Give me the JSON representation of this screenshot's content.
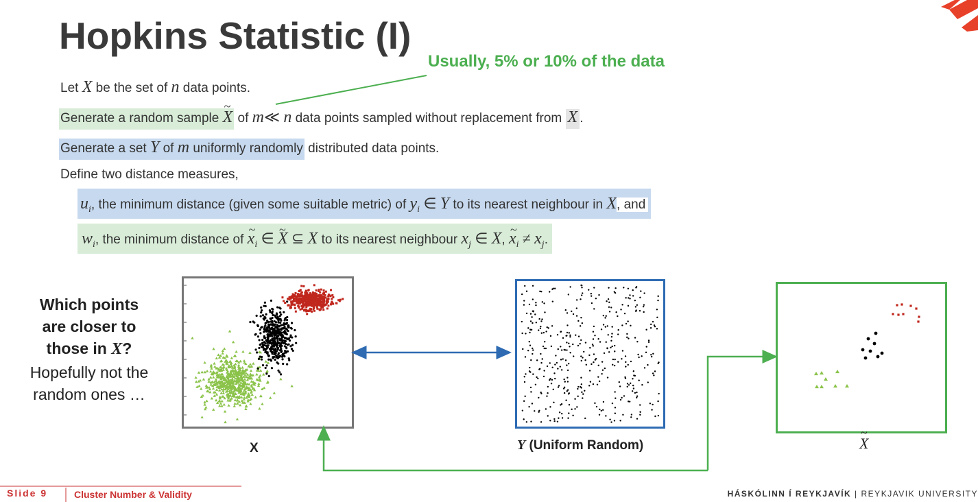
{
  "title": "Hopkins Statistic (I)",
  "callout": "Usually, 5% or 10% of the data",
  "lines": {
    "l1": {
      "a": "Let ",
      "x": "X",
      "b": " be the set of ",
      "n": "n",
      "c": " data points."
    },
    "l2": {
      "a": "Generate a random sample ",
      "xt": "X",
      "b": " of ",
      "m": "m",
      "ll": "≪",
      "n": "n",
      "c": " data points sampled without replacement from ",
      "x": "X",
      "d": "."
    },
    "l3": {
      "a": "Generate a set ",
      "y": "Y",
      "b": " of ",
      "m": "m",
      "c": " uniformly randomly",
      "d": " distributed data points."
    },
    "l4": {
      "a": "Define two distance measures,"
    },
    "l5": {
      "u": "u",
      "i": "i",
      "a": ", the minimum distance (given some suitable metric) of ",
      "y": "y",
      "yi": "i",
      "in": "∈",
      "Y": "Y",
      "b": " to its nearest neighbour in ",
      "X": "X",
      "c": ", and"
    },
    "l6": {
      "w": "w",
      "i": "i",
      "a": ", the minimum distance of ",
      "x": "x",
      "xi": "i",
      "in": "∈",
      "Xt": "X",
      "sub": "⊆",
      "X": "X",
      "b": " to its nearest neighbour ",
      "xj": "x",
      "j": "j",
      "in2": "∈",
      "X2": "X",
      "comma": ", ",
      "x2": "x",
      "i2": "i",
      "ne": "≠",
      "x3": "x",
      "j2": "j",
      "dot": "."
    }
  },
  "question": {
    "q1": "Which points",
    "q2": "are closer to",
    "q3a": "those in ",
    "q3x": "X",
    "q3b": "?",
    "q4": "Hopefully not the",
    "q5": "random ones …"
  },
  "captions": {
    "x": "X",
    "y_var": "Y",
    "y_rest": " (Uniform Random)",
    "xt": "X"
  },
  "footer": {
    "slide": "Slide 9",
    "course": "Cluster Number & Validity",
    "uni_bold": "HÁSKÓLINN Í REYKJAVÍK",
    "sep": " | ",
    "uni": "REYKJAVIK UNIVERSITY"
  },
  "colors": {
    "green": "#4caf50",
    "blue": "#2e6bb3",
    "red": "#c0271d",
    "lime": "#8bc34a",
    "brand": "#e8412a"
  }
}
